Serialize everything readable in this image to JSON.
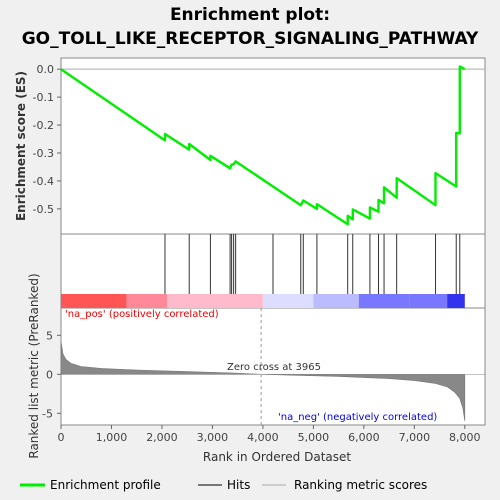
{
  "chart_data": {
    "type": "line",
    "title_line1": "Enrichment plot:",
    "title_line2": "GO_TOLL_LIKE_RECEPTOR_SIGNALING_PATHWAY",
    "xlabel": "Rank in Ordered Dataset",
    "ylabel_top": "Enrichment score (ES)",
    "ylabel_bottom": "Ranked list metric (PreRanked)",
    "xlim": [
      0,
      8400
    ],
    "es_ylim": [
      -0.59,
      0.04
    ],
    "metric_ylim": [
      -6.5,
      8.5
    ],
    "x_ticks": [
      "0",
      "1,000",
      "2,000",
      "3,000",
      "4,000",
      "5,000",
      "6,000",
      "7,000",
      "8,000"
    ],
    "x_tick_values": [
      0,
      1000,
      2000,
      3000,
      4000,
      5000,
      6000,
      7000,
      8000
    ],
    "es_ticks": [
      "0.0",
      "-0.1",
      "-0.2",
      "-0.3",
      "-0.4",
      "-0.5"
    ],
    "es_tick_values": [
      0.0,
      -0.1,
      -0.2,
      -0.3,
      -0.4,
      -0.5
    ],
    "metric_ticks": [
      "5",
      "0",
      "-5"
    ],
    "metric_tick_values": [
      5,
      0,
      -5
    ],
    "hits": [
      2060,
      2540,
      2960,
      3350,
      3380,
      3420,
      3460,
      4200,
      4750,
      4800,
      5070,
      5680,
      5780,
      6120,
      6290,
      6400,
      6650,
      7420,
      7830,
      7900
    ],
    "es_points": [
      [
        0,
        0.0
      ],
      [
        2060,
        -0.255
      ],
      [
        2060,
        -0.232
      ],
      [
        2540,
        -0.288
      ],
      [
        2540,
        -0.268
      ],
      [
        2960,
        -0.325
      ],
      [
        2960,
        -0.31
      ],
      [
        3350,
        -0.355
      ],
      [
        3380,
        -0.342
      ],
      [
        3420,
        -0.34
      ],
      [
        3460,
        -0.33
      ],
      [
        4200,
        -0.42
      ],
      [
        4750,
        -0.487
      ],
      [
        4800,
        -0.47
      ],
      [
        5070,
        -0.5
      ],
      [
        5070,
        -0.483
      ],
      [
        5680,
        -0.555
      ],
      [
        5680,
        -0.525
      ],
      [
        5780,
        -0.537
      ],
      [
        5780,
        -0.502
      ],
      [
        6120,
        -0.535
      ],
      [
        6120,
        -0.495
      ],
      [
        6290,
        -0.51
      ],
      [
        6290,
        -0.468
      ],
      [
        6400,
        -0.48
      ],
      [
        6400,
        -0.423
      ],
      [
        6650,
        -0.46
      ],
      [
        6650,
        -0.39
      ],
      [
        7420,
        -0.487
      ],
      [
        7420,
        -0.372
      ],
      [
        7830,
        -0.42
      ],
      [
        7830,
        -0.228
      ],
      [
        7900,
        -0.23
      ],
      [
        7900,
        0.01
      ],
      [
        8000,
        0.0
      ]
    ],
    "metric_profile": [
      [
        0,
        4.2
      ],
      [
        40,
        2.6
      ],
      [
        100,
        1.9
      ],
      [
        200,
        1.4
      ],
      [
        400,
        1.0
      ],
      [
        800,
        0.75
      ],
      [
        1500,
        0.55
      ],
      [
        2500,
        0.35
      ],
      [
        3500,
        0.15
      ],
      [
        3965,
        0.0
      ],
      [
        4500,
        -0.1
      ],
      [
        5500,
        -0.28
      ],
      [
        6500,
        -0.55
      ],
      [
        7000,
        -0.8
      ],
      [
        7400,
        -1.15
      ],
      [
        7650,
        -1.6
      ],
      [
        7800,
        -2.3
      ],
      [
        7900,
        -3.1
      ],
      [
        7960,
        -4.3
      ],
      [
        8000,
        -6.0
      ]
    ],
    "zero_cross_label": "Zero cross at 3965",
    "zero_cross_x": 3965,
    "pos_label": "'na_pos' (positively correlated)",
    "neg_label": "'na_neg' (negatively correlated)",
    "legend": [
      "Enrichment profile",
      "Hits",
      "Ranking metric scores"
    ],
    "colors": {
      "es_line": "#00ee00",
      "hit_line": "#333333",
      "metric_fill": "#888888",
      "pos_text": "#ee0000",
      "neg_text": "#0000ee",
      "bar_pos_strong": "#ff5555",
      "bar_pos_mid": "#ff8899",
      "bar_pos_light": "#ffbbcc",
      "bar_neutral": "#ddddff",
      "bar_neg_light": "#bbbbff",
      "bar_neg_mid": "#7777ff",
      "bar_neg_strong": "#3333ee"
    }
  }
}
